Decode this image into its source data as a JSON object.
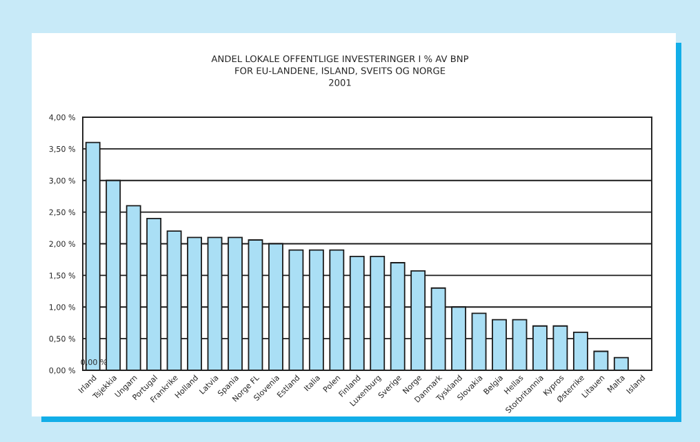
{
  "chart_data": {
    "type": "bar",
    "title": "ANDEL LOKALE OFFENTLIGE INVESTERINGER I % AV BNP\nFOR EU-LANDENE, ISLAND, SVEITS OG NORGE\n2001",
    "categories": [
      "Irland",
      "Tsjekkia",
      "Ungarn",
      "Portugal",
      "Frankrike",
      "Holland",
      "Latvia",
      "Spania",
      "Norge FL",
      "Slovenia",
      "Estland",
      "Italia",
      "Polen",
      "Finland",
      "Luxenburg",
      "Sverige",
      "Norge",
      "Danmark",
      "Tyskland",
      "Slovakia",
      "Belgia",
      "Hellas",
      "Storbritannia",
      "Kypros",
      "Østerrike",
      "Litauen",
      "Malta",
      "Island"
    ],
    "values": [
      3.6,
      3.0,
      2.6,
      2.4,
      2.2,
      2.1,
      2.1,
      2.1,
      2.06,
      2.0,
      1.9,
      1.9,
      1.9,
      1.8,
      1.8,
      1.7,
      1.57,
      1.3,
      1.0,
      0.9,
      0.8,
      0.8,
      0.7,
      0.7,
      0.6,
      0.3,
      0.2,
      null
    ],
    "color": "#aadff5",
    "ylim": [
      0,
      4
    ],
    "yticks": [
      {
        "value": 0,
        "label": "0,00 %"
      },
      {
        "value": 0.5,
        "label": "0,50 %"
      },
      {
        "value": 1,
        "label": "1,00 %"
      },
      {
        "value": 1.5,
        "label": "1,50 %"
      },
      {
        "value": 2,
        "label": "2,00 %"
      },
      {
        "value": 2.5,
        "label": "2,50 %"
      },
      {
        "value": 3,
        "label": "3,00 %"
      },
      {
        "value": 3.5,
        "label": "3,50 %"
      },
      {
        "value": 4,
        "label": "4,00 %"
      }
    ],
    "grid": "y",
    "annotations": [
      "0,00 %"
    ]
  }
}
